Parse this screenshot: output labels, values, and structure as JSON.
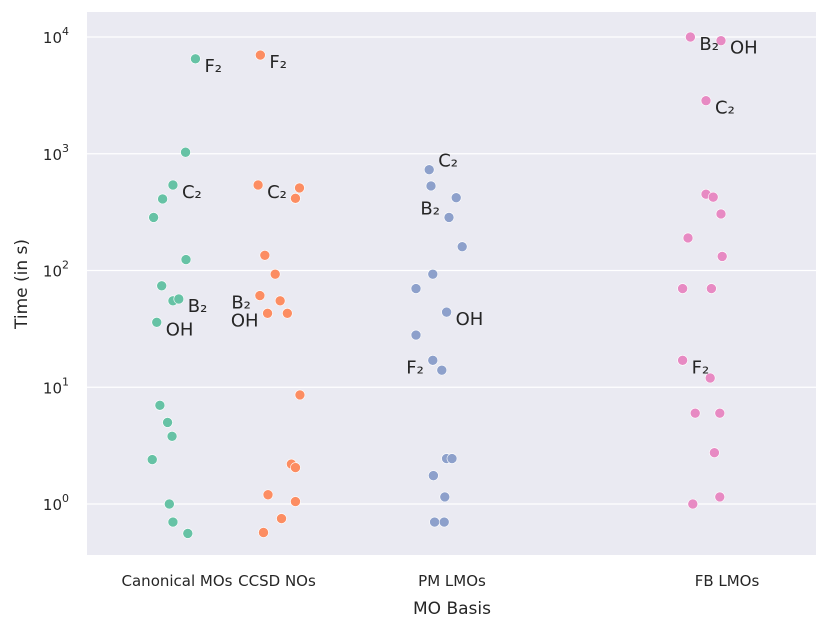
{
  "chart_data": {
    "type": "scatter",
    "title": "",
    "xlabel": "MO Basis",
    "ylabel": "Time (in s)",
    "yscale": "log",
    "ylim": [
      0.35,
      15000
    ],
    "grid": true,
    "y_ticks": [
      {
        "value": 1,
        "base": "10",
        "exp": "0"
      },
      {
        "value": 10,
        "base": "10",
        "exp": "1"
      },
      {
        "value": 100,
        "base": "10",
        "exp": "2"
      },
      {
        "value": 1000,
        "base": "10",
        "exp": "3"
      },
      {
        "value": 10000,
        "base": "10",
        "exp": "4"
      }
    ],
    "categories": [
      "Canonical MOs",
      "CCSD NOs",
      "PM LMOs",
      "FB LMOs"
    ],
    "series": [
      {
        "color": "#66c2a5",
        "points": [
          {
            "x": 0.41,
            "y": 6500,
            "label": "F₂"
          },
          {
            "x": 0.19,
            "y": 1030
          },
          {
            "x": -0.09,
            "y": 540,
            "label": "C₂"
          },
          {
            "x": -0.32,
            "y": 410
          },
          {
            "x": -0.52,
            "y": 285
          },
          {
            "x": 0.2,
            "y": 124
          },
          {
            "x": -0.34,
            "y": 74
          },
          {
            "x": -0.09,
            "y": 55
          },
          {
            "x": 0.04,
            "y": 57,
            "label": "B₂"
          },
          {
            "x": -0.45,
            "y": 36,
            "label": "OH"
          },
          {
            "x": -0.38,
            "y": 7.0
          },
          {
            "x": -0.21,
            "y": 5.0
          },
          {
            "x": -0.11,
            "y": 3.8
          },
          {
            "x": -0.55,
            "y": 2.4
          },
          {
            "x": -0.17,
            "y": 1.0
          },
          {
            "x": -0.09,
            "y": 0.7
          },
          {
            "x": 0.24,
            "y": 0.56
          }
        ]
      },
      {
        "color": "#fc8d62",
        "points": [
          {
            "x": -0.37,
            "y": 7000,
            "label": "F₂"
          },
          {
            "x": -0.42,
            "y": 540,
            "label": "C₂"
          },
          {
            "x": 0.5,
            "y": 510
          },
          {
            "x": 0.41,
            "y": 415
          },
          {
            "x": -0.27,
            "y": 135
          },
          {
            "x": -0.04,
            "y": 93
          },
          {
            "x": -0.38,
            "y": 61,
            "label": "B₂"
          },
          {
            "x": 0.07,
            "y": 55
          },
          {
            "x": -0.21,
            "y": 43,
            "label": "OH"
          },
          {
            "x": 0.23,
            "y": 43
          },
          {
            "x": 0.51,
            "y": 8.6
          },
          {
            "x": 0.32,
            "y": 2.2
          },
          {
            "x": 0.41,
            "y": 2.05
          },
          {
            "x": -0.2,
            "y": 1.2
          },
          {
            "x": 0.41,
            "y": 1.05
          },
          {
            "x": 0.1,
            "y": 0.75
          },
          {
            "x": -0.3,
            "y": 0.57
          }
        ]
      },
      {
        "color": "#8da0cb",
        "points": [
          {
            "x": -0.38,
            "y": 730,
            "label": "C₂"
          },
          {
            "x": -0.35,
            "y": 530
          },
          {
            "x": 0.07,
            "y": 420
          },
          {
            "x": -0.05,
            "y": 285,
            "label": "B₂"
          },
          {
            "x": 0.17,
            "y": 160
          },
          {
            "x": -0.32,
            "y": 93
          },
          {
            "x": -0.6,
            "y": 70
          },
          {
            "x": -0.09,
            "y": 44,
            "label": "OH"
          },
          {
            "x": -0.6,
            "y": 28
          },
          {
            "x": -0.32,
            "y": 17,
            "label": "F₂"
          },
          {
            "x": -0.17,
            "y": 14
          },
          {
            "x": -0.09,
            "y": 2.45
          },
          {
            "x": 0.0,
            "y": 2.45
          },
          {
            "x": -0.31,
            "y": 1.75
          },
          {
            "x": -0.12,
            "y": 1.15
          },
          {
            "x": -0.29,
            "y": 0.7
          },
          {
            "x": -0.13,
            "y": 0.7
          }
        ]
      },
      {
        "color": "#e78ac3",
        "points": [
          {
            "x": -0.61,
            "y": 10000,
            "label": "B₂"
          },
          {
            "x": -0.1,
            "y": 9300,
            "label": "OH"
          },
          {
            "x": -0.35,
            "y": 2850,
            "label": "C₂"
          },
          {
            "x": -0.35,
            "y": 450
          },
          {
            "x": -0.23,
            "y": 425
          },
          {
            "x": -0.1,
            "y": 305
          },
          {
            "x": -0.65,
            "y": 190
          },
          {
            "x": -0.08,
            "y": 132
          },
          {
            "x": -0.74,
            "y": 70
          },
          {
            "x": -0.26,
            "y": 70
          },
          {
            "x": -0.74,
            "y": 17,
            "label": "F₂"
          },
          {
            "x": -0.28,
            "y": 12
          },
          {
            "x": -0.53,
            "y": 6.0
          },
          {
            "x": -0.12,
            "y": 6.0
          },
          {
            "x": -0.21,
            "y": 2.75
          },
          {
            "x": -0.12,
            "y": 1.15
          },
          {
            "x": -0.57,
            "y": 1.0
          }
        ]
      }
    ]
  }
}
